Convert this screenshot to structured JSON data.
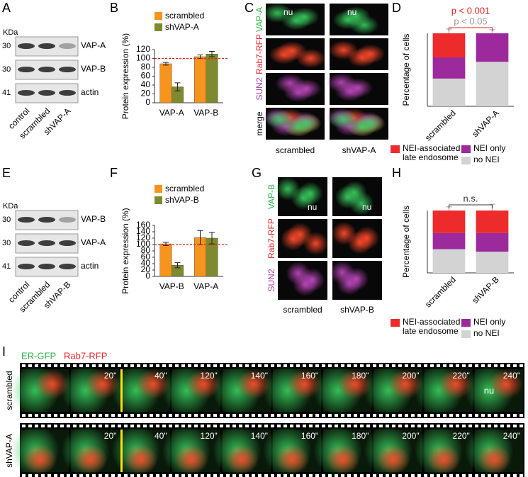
{
  "panel_labels": [
    "A",
    "B",
    "C",
    "D",
    "E",
    "F",
    "G",
    "H",
    "I"
  ],
  "blots": [
    {
      "unit": "KDa",
      "markers": [
        "30",
        "30",
        "41"
      ],
      "bands": [
        "VAP-A",
        "VAP-B",
        "actin"
      ],
      "lanes": [
        "control",
        "scrambled",
        "shVAP-A"
      ]
    },
    {
      "unit": "KDa",
      "markers": [
        "30",
        "30",
        "41"
      ],
      "bands": [
        "VAP-B",
        "VAP-A",
        "actin"
      ],
      "lanes": [
        "control",
        "scrambled",
        "shVAP-B"
      ]
    }
  ],
  "micrographs": [
    {
      "channels": [
        {
          "label": "VAP-A",
          "color": "#2db34a"
        },
        {
          "label": "Rab7-RFP",
          "color": "#e8262b"
        },
        {
          "label": "SUN2",
          "color": "#a63ca6"
        },
        {
          "label": "merge",
          "color": "#000000"
        }
      ],
      "columns": [
        "scrambled",
        "shVAP-A"
      ],
      "nucleus": "nu"
    },
    {
      "channels": [
        {
          "label": "VAP-B",
          "color": "#2db34a"
        },
        {
          "label": "Rab7-RFP",
          "color": "#e8262b"
        },
        {
          "label": "SUN2",
          "color": "#a63ca6"
        }
      ],
      "columns": [
        "scrambled",
        "shVAP-B"
      ],
      "nucleus": "nu"
    }
  ],
  "chart_data": [
    {
      "type": "bar",
      "ylabel": "Protein expression (%)",
      "categories": [
        "VAP-A",
        "VAP-B"
      ],
      "series": [
        {
          "name": "scrambled",
          "color": "#f7941d",
          "values": [
            88,
            104
          ],
          "errors": [
            3,
            4
          ]
        },
        {
          "name": "shVAP-A",
          "color": "#7f8a2e",
          "values": [
            36,
            110
          ],
          "errors": [
            9,
            6
          ]
        }
      ],
      "ylim": [
        0,
        120
      ],
      "yticks": [
        0,
        20,
        40,
        60,
        80,
        100,
        120
      ],
      "reference_line": 100,
      "reference_color": "#e02020"
    },
    {
      "type": "stacked_bar",
      "ylabel": "Percentage of cells",
      "categories": [
        "scrambled",
        "shVAP-A"
      ],
      "series": [
        {
          "name": "no NEI",
          "color": "#d3d3d3",
          "values": [
            38,
            61
          ],
          "errors": [
            10,
            8
          ]
        },
        {
          "name": "NEI only",
          "color": "#9c2a9c",
          "values": [
            29,
            39
          ]
        },
        {
          "name": "NEI-associated late endosome",
          "color": "#ee2b2b",
          "values": [
            33,
            0
          ],
          "errors": [
            6,
            5
          ]
        }
      ],
      "ylim": [
        0,
        100
      ],
      "annotations": [
        {
          "text": "p < 0.001",
          "color": "#e02020"
        },
        {
          "text": "p < 0.05",
          "color": "#999999"
        }
      ]
    },
    {
      "type": "bar",
      "ylabel": "Protein expression (%)",
      "categories": [
        "VAP-B",
        "VAP-A"
      ],
      "series": [
        {
          "name": "scrambled",
          "color": "#f7941d",
          "values": [
            102,
            122
          ],
          "errors": [
            5,
            22
          ]
        },
        {
          "name": "shVAP-B",
          "color": "#7f8a2e",
          "values": [
            35,
            120
          ],
          "errors": [
            8,
            18
          ]
        }
      ],
      "ylim": [
        0,
        160
      ],
      "yticks": [
        0,
        20,
        40,
        60,
        80,
        100,
        120,
        140,
        160
      ],
      "reference_line": 100,
      "reference_color": "#e02020"
    },
    {
      "type": "stacked_bar",
      "ylabel": "Percentage of cells",
      "categories": [
        "scrambled",
        "shVAP-B"
      ],
      "series": [
        {
          "name": "no NEI",
          "color": "#d3d3d3",
          "values": [
            38,
            34
          ],
          "errors": [
            9,
            20
          ]
        },
        {
          "name": "NEI only",
          "color": "#9c2a9c",
          "values": [
            26,
            30
          ]
        },
        {
          "name": "NEI-associated late endosome",
          "color": "#ee2b2b",
          "values": [
            36,
            36
          ],
          "errors": [
            6,
            10
          ]
        }
      ],
      "ylim": [
        0,
        100
      ],
      "annotations": [
        {
          "text": "n.s.",
          "color": "#333333"
        }
      ]
    }
  ],
  "timelapse": {
    "channels": [
      {
        "label": "ER-GFP",
        "color": "#2db34a"
      },
      {
        "label": "Rab7-RFP",
        "color": "#e8262b"
      }
    ],
    "rows": [
      "scrambled",
      "shVAP-A"
    ],
    "times": [
      "20\"",
      "40\"",
      "120\"",
      "140\"",
      "160\"",
      "180\"",
      "200\"",
      "220\"",
      "240\""
    ],
    "nucleus": "nu"
  }
}
